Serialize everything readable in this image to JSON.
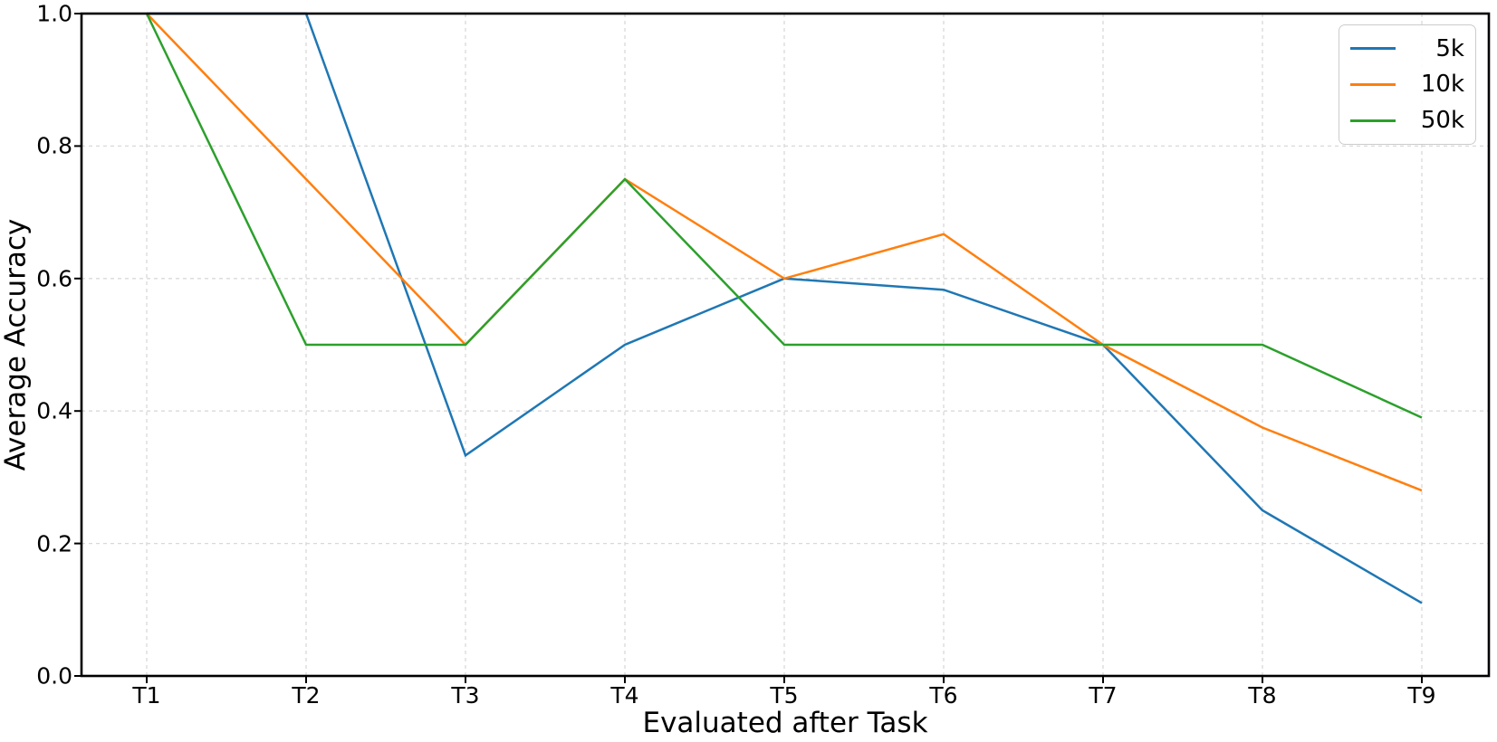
{
  "chart_data": {
    "type": "line",
    "title": "",
    "xlabel": "Evaluated after Task",
    "ylabel": "Average Accuracy",
    "categories": [
      "T1",
      "T2",
      "T3",
      "T4",
      "T5",
      "T6",
      "T7",
      "T8",
      "T9"
    ],
    "ytick_labels": [
      "0.0",
      "0.2",
      "0.4",
      "0.6",
      "0.8",
      "1.0"
    ],
    "yticks": [
      0.0,
      0.2,
      0.4,
      0.6,
      0.8,
      1.0
    ],
    "ylim": [
      0.0,
      1.0
    ],
    "grid": "dashed",
    "legend_position": "upper right",
    "series": [
      {
        "name": "5k",
        "color": "#1f77b4",
        "values": [
          1.0,
          1.0,
          0.333,
          0.5,
          0.6,
          0.583,
          0.5,
          0.25,
          0.11
        ]
      },
      {
        "name": "10k",
        "color": "#ff7f0e",
        "values": [
          1.0,
          0.75,
          0.5,
          0.75,
          0.6,
          0.667,
          0.5,
          0.375,
          0.28
        ]
      },
      {
        "name": "50k",
        "color": "#2ca02c",
        "values": [
          1.0,
          0.5,
          0.5,
          0.75,
          0.5,
          0.5,
          0.5,
          0.5,
          0.39
        ]
      }
    ]
  },
  "colors": {
    "background": "#ffffff",
    "grid": "#d9d9d9",
    "spine": "#000000",
    "tick": "#000000",
    "text": "#000000",
    "legend_border": "#cccccc"
  }
}
